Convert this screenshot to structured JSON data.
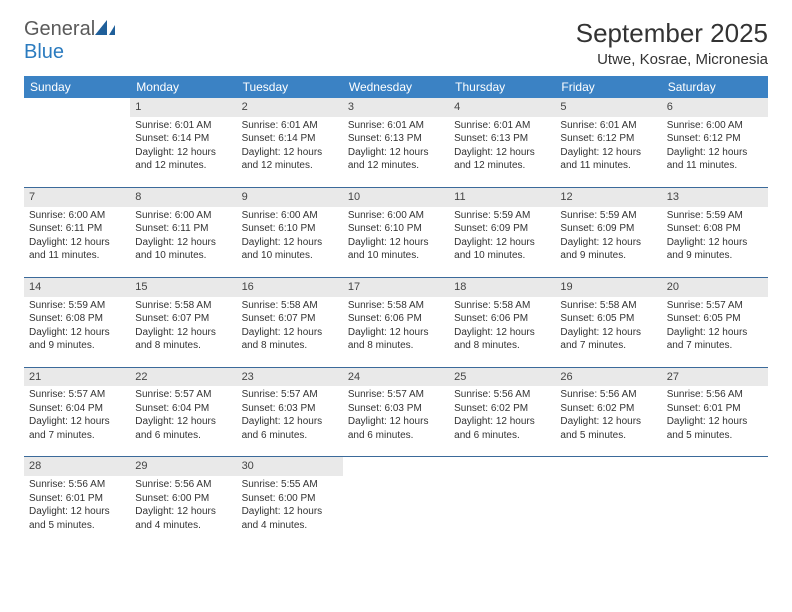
{
  "brand": {
    "name_part1": "General",
    "name_part2": "Blue"
  },
  "title": "September 2025",
  "location": "Utwe, Kosrae, Micronesia",
  "colors": {
    "header_bg": "#3b82c4",
    "rule": "#3b6a9a",
    "daynum_bg": "#e9e9e9",
    "text": "#333333"
  },
  "day_names": [
    "Sunday",
    "Monday",
    "Tuesday",
    "Wednesday",
    "Thursday",
    "Friday",
    "Saturday"
  ],
  "weeks": [
    [
      {
        "n": "",
        "sr": "",
        "ss": "",
        "dl": ""
      },
      {
        "n": "1",
        "sr": "6:01 AM",
        "ss": "6:14 PM",
        "dl": "12 hours and 12 minutes."
      },
      {
        "n": "2",
        "sr": "6:01 AM",
        "ss": "6:14 PM",
        "dl": "12 hours and 12 minutes."
      },
      {
        "n": "3",
        "sr": "6:01 AM",
        "ss": "6:13 PM",
        "dl": "12 hours and 12 minutes."
      },
      {
        "n": "4",
        "sr": "6:01 AM",
        "ss": "6:13 PM",
        "dl": "12 hours and 12 minutes."
      },
      {
        "n": "5",
        "sr": "6:01 AM",
        "ss": "6:12 PM",
        "dl": "12 hours and 11 minutes."
      },
      {
        "n": "6",
        "sr": "6:00 AM",
        "ss": "6:12 PM",
        "dl": "12 hours and 11 minutes."
      }
    ],
    [
      {
        "n": "7",
        "sr": "6:00 AM",
        "ss": "6:11 PM",
        "dl": "12 hours and 11 minutes."
      },
      {
        "n": "8",
        "sr": "6:00 AM",
        "ss": "6:11 PM",
        "dl": "12 hours and 10 minutes."
      },
      {
        "n": "9",
        "sr": "6:00 AM",
        "ss": "6:10 PM",
        "dl": "12 hours and 10 minutes."
      },
      {
        "n": "10",
        "sr": "6:00 AM",
        "ss": "6:10 PM",
        "dl": "12 hours and 10 minutes."
      },
      {
        "n": "11",
        "sr": "5:59 AM",
        "ss": "6:09 PM",
        "dl": "12 hours and 10 minutes."
      },
      {
        "n": "12",
        "sr": "5:59 AM",
        "ss": "6:09 PM",
        "dl": "12 hours and 9 minutes."
      },
      {
        "n": "13",
        "sr": "5:59 AM",
        "ss": "6:08 PM",
        "dl": "12 hours and 9 minutes."
      }
    ],
    [
      {
        "n": "14",
        "sr": "5:59 AM",
        "ss": "6:08 PM",
        "dl": "12 hours and 9 minutes."
      },
      {
        "n": "15",
        "sr": "5:58 AM",
        "ss": "6:07 PM",
        "dl": "12 hours and 8 minutes."
      },
      {
        "n": "16",
        "sr": "5:58 AM",
        "ss": "6:07 PM",
        "dl": "12 hours and 8 minutes."
      },
      {
        "n": "17",
        "sr": "5:58 AM",
        "ss": "6:06 PM",
        "dl": "12 hours and 8 minutes."
      },
      {
        "n": "18",
        "sr": "5:58 AM",
        "ss": "6:06 PM",
        "dl": "12 hours and 8 minutes."
      },
      {
        "n": "19",
        "sr": "5:58 AM",
        "ss": "6:05 PM",
        "dl": "12 hours and 7 minutes."
      },
      {
        "n": "20",
        "sr": "5:57 AM",
        "ss": "6:05 PM",
        "dl": "12 hours and 7 minutes."
      }
    ],
    [
      {
        "n": "21",
        "sr": "5:57 AM",
        "ss": "6:04 PM",
        "dl": "12 hours and 7 minutes."
      },
      {
        "n": "22",
        "sr": "5:57 AM",
        "ss": "6:04 PM",
        "dl": "12 hours and 6 minutes."
      },
      {
        "n": "23",
        "sr": "5:57 AM",
        "ss": "6:03 PM",
        "dl": "12 hours and 6 minutes."
      },
      {
        "n": "24",
        "sr": "5:57 AM",
        "ss": "6:03 PM",
        "dl": "12 hours and 6 minutes."
      },
      {
        "n": "25",
        "sr": "5:56 AM",
        "ss": "6:02 PM",
        "dl": "12 hours and 6 minutes."
      },
      {
        "n": "26",
        "sr": "5:56 AM",
        "ss": "6:02 PM",
        "dl": "12 hours and 5 minutes."
      },
      {
        "n": "27",
        "sr": "5:56 AM",
        "ss": "6:01 PM",
        "dl": "12 hours and 5 minutes."
      }
    ],
    [
      {
        "n": "28",
        "sr": "5:56 AM",
        "ss": "6:01 PM",
        "dl": "12 hours and 5 minutes."
      },
      {
        "n": "29",
        "sr": "5:56 AM",
        "ss": "6:00 PM",
        "dl": "12 hours and 4 minutes."
      },
      {
        "n": "30",
        "sr": "5:55 AM",
        "ss": "6:00 PM",
        "dl": "12 hours and 4 minutes."
      },
      {
        "n": "",
        "sr": "",
        "ss": "",
        "dl": ""
      },
      {
        "n": "",
        "sr": "",
        "ss": "",
        "dl": ""
      },
      {
        "n": "",
        "sr": "",
        "ss": "",
        "dl": ""
      },
      {
        "n": "",
        "sr": "",
        "ss": "",
        "dl": ""
      }
    ]
  ],
  "labels": {
    "sunrise": "Sunrise:",
    "sunset": "Sunset:",
    "daylight": "Daylight:"
  }
}
